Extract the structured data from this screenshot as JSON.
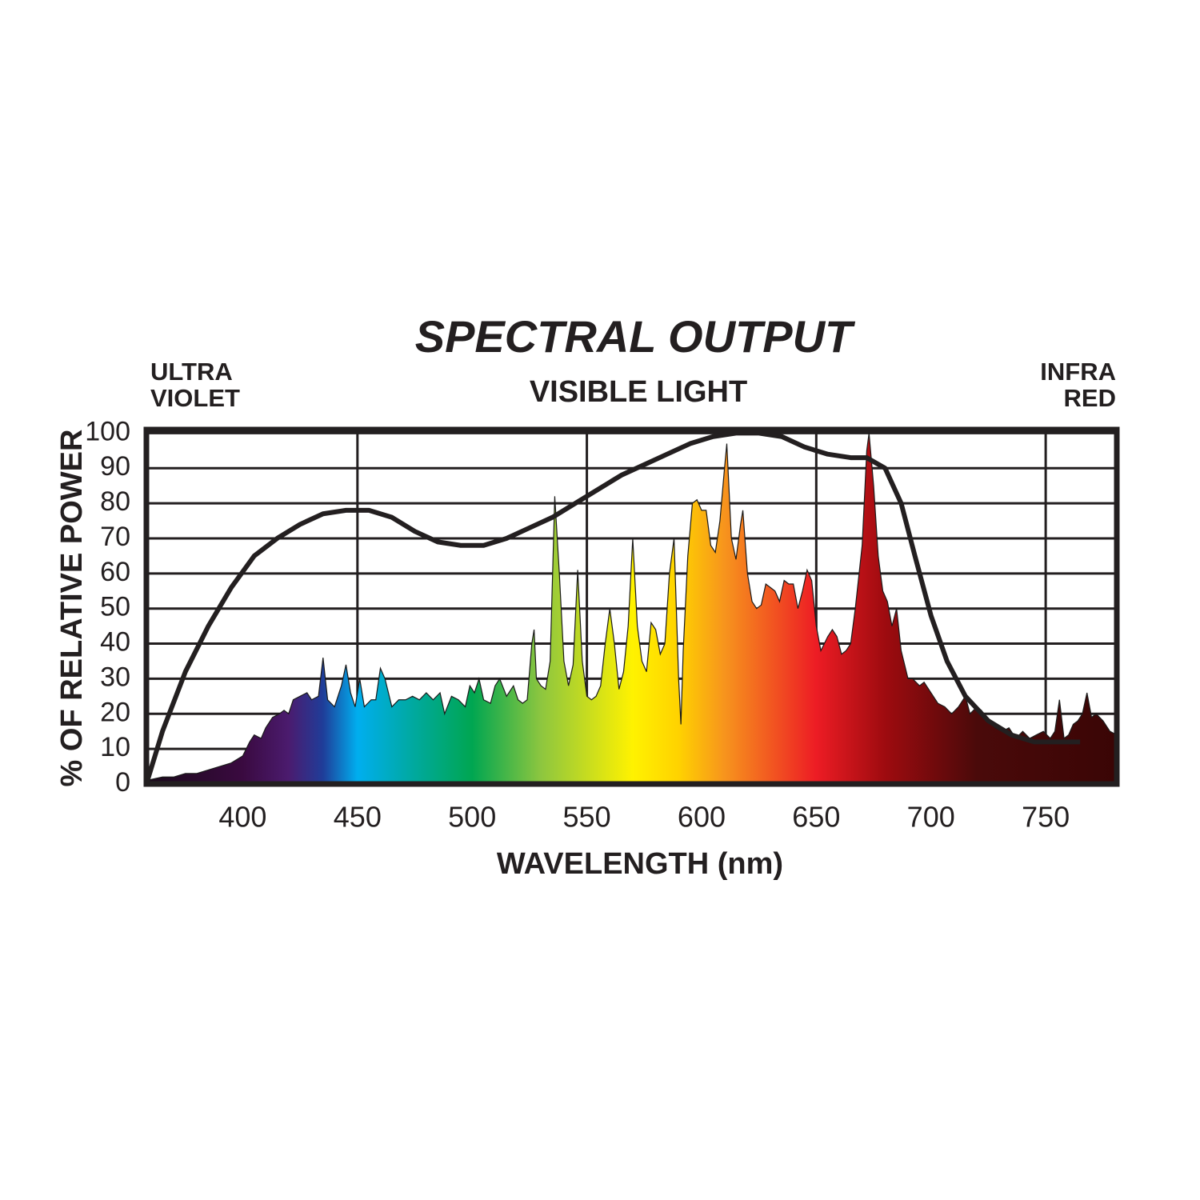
{
  "chart_data": {
    "type": "spectrum",
    "title": "SPECTRAL OUTPUT",
    "annotations": [
      {
        "lines": [
          "ULTRA",
          "VIOLET"
        ],
        "position": "left"
      },
      {
        "lines": [
          "VISIBLE LIGHT"
        ],
        "position": "center"
      },
      {
        "lines": [
          "INFRA",
          "RED"
        ],
        "position": "right"
      }
    ],
    "xlabel": "WAVELENGTH (nm)",
    "ylabel": "% OF RELATIVE POWER",
    "xlim": [
      358,
      781
    ],
    "ylim": [
      0,
      101
    ],
    "xticks": [
      400,
      450,
      500,
      550,
      600,
      650,
      700,
      750
    ],
    "yticks": [
      0,
      10,
      20,
      30,
      40,
      50,
      60,
      70,
      80,
      90,
      100
    ],
    "x_grid_lines": [
      450,
      550,
      650,
      750
    ],
    "grid": true,
    "gradient": [
      {
        "at": 358,
        "color": "#1a0a1a"
      },
      {
        "at": 400,
        "color": "#3a0a40"
      },
      {
        "at": 420,
        "color": "#4b1b6e"
      },
      {
        "at": 435,
        "color": "#1f3d99"
      },
      {
        "at": 450,
        "color": "#00aeef"
      },
      {
        "at": 475,
        "color": "#00a99d"
      },
      {
        "at": 500,
        "color": "#00a651"
      },
      {
        "at": 530,
        "color": "#8dc63f"
      },
      {
        "at": 570,
        "color": "#fff200"
      },
      {
        "at": 590,
        "color": "#ffd200"
      },
      {
        "at": 610,
        "color": "#f7941d"
      },
      {
        "at": 650,
        "color": "#ed1c24"
      },
      {
        "at": 680,
        "color": "#9e0b0f"
      },
      {
        "at": 720,
        "color": "#4a0a0a"
      },
      {
        "at": 781,
        "color": "#3a0505"
      }
    ],
    "series": [
      {
        "kind": "area",
        "color": "#1a1a1a",
        "x": [
          358,
          365,
          370,
          375,
          380,
          385,
          390,
          395,
          400,
          403,
          405,
          408,
          410,
          413,
          416,
          418,
          420,
          422,
          425,
          428,
          430,
          433,
          435,
          437,
          440,
          443,
          445,
          447,
          449,
          451,
          453,
          456,
          458,
          460,
          462,
          465,
          468,
          471,
          474,
          477,
          480,
          483,
          486,
          488,
          491,
          494,
          497,
          499,
          501,
          503,
          505,
          508,
          510,
          512,
          515,
          518,
          520,
          522,
          524,
          526,
          527,
          528,
          530,
          532,
          534,
          536,
          538,
          540,
          542,
          544,
          546,
          548,
          550,
          552,
          554,
          556,
          558,
          560,
          562,
          564,
          566,
          568,
          570,
          572,
          574,
          576,
          578,
          580,
          582,
          584,
          586,
          588,
          590,
          591,
          592,
          594,
          596,
          598,
          600,
          602,
          604,
          606,
          608,
          610,
          611,
          613,
          615,
          617,
          618,
          620,
          622,
          624,
          626,
          628,
          630,
          632,
          634,
          636,
          638,
          640,
          642,
          644,
          646,
          648,
          650,
          652,
          655,
          657,
          659,
          661,
          663,
          665,
          667,
          670,
          672,
          673,
          675,
          677,
          679,
          681,
          683,
          685,
          687,
          690,
          692,
          695,
          697,
          700,
          703,
          706,
          709,
          712,
          715,
          717,
          720,
          722,
          725,
          728,
          731,
          734,
          737,
          740,
          743,
          746,
          749,
          752,
          754,
          756,
          758,
          760,
          762,
          764,
          766,
          768,
          770,
          772,
          775,
          778,
          781
        ],
        "values": [
          1,
          2,
          2,
          3,
          3,
          4,
          5,
          6,
          8,
          12,
          14,
          13,
          16,
          19,
          20,
          21,
          20,
          24,
          25,
          26,
          24,
          25,
          36,
          24,
          22,
          28,
          34,
          26,
          22,
          30,
          22,
          24,
          24,
          33,
          30,
          22,
          24,
          24,
          25,
          24,
          26,
          24,
          26,
          20,
          25,
          24,
          22,
          28,
          26,
          30,
          24,
          23,
          28,
          30,
          25,
          28,
          24,
          23,
          24,
          40,
          44,
          30,
          28,
          27,
          35,
          82,
          60,
          35,
          28,
          34,
          61,
          35,
          25,
          24,
          25,
          28,
          40,
          50,
          40,
          27,
          32,
          45,
          70,
          45,
          35,
          32,
          46,
          44,
          37,
          40,
          60,
          70,
          30,
          17,
          38,
          65,
          80,
          81,
          78,
          78,
          68,
          66,
          75,
          90,
          97,
          70,
          64,
          74,
          78,
          60,
          52,
          50,
          51,
          57,
          56,
          55,
          52,
          58,
          57,
          57,
          50,
          55,
          61,
          58,
          45,
          38,
          42,
          44,
          42,
          37,
          38,
          40,
          50,
          68,
          95,
          100,
          85,
          65,
          55,
          52,
          45,
          50,
          38,
          30,
          30,
          28,
          29,
          26,
          23,
          22,
          20,
          22,
          25,
          20,
          22,
          21,
          18,
          16,
          15,
          16,
          13,
          15,
          13,
          14,
          15,
          13,
          15,
          24,
          13,
          14,
          17,
          18,
          20,
          26,
          19,
          20,
          18,
          15,
          14
        ]
      },
      {
        "kind": "line",
        "color": "#231f20",
        "x": [
          358,
          365,
          375,
          385,
          395,
          405,
          415,
          425,
          435,
          445,
          455,
          465,
          475,
          485,
          495,
          505,
          515,
          525,
          535,
          545,
          555,
          565,
          575,
          585,
          595,
          605,
          615,
          625,
          635,
          645,
          655,
          665,
          672,
          680,
          687,
          693,
          700,
          707,
          715,
          725,
          735,
          745,
          755,
          765
        ],
        "values": [
          0,
          15,
          32,
          45,
          56,
          65,
          70,
          74,
          77,
          78,
          78,
          76,
          72,
          69,
          68,
          68,
          70,
          73,
          76,
          80,
          84,
          88,
          91,
          94,
          97,
          99,
          100,
          100,
          99,
          96,
          94,
          93,
          93,
          90,
          80,
          65,
          48,
          35,
          25,
          18,
          14,
          12,
          12,
          12
        ]
      }
    ]
  }
}
